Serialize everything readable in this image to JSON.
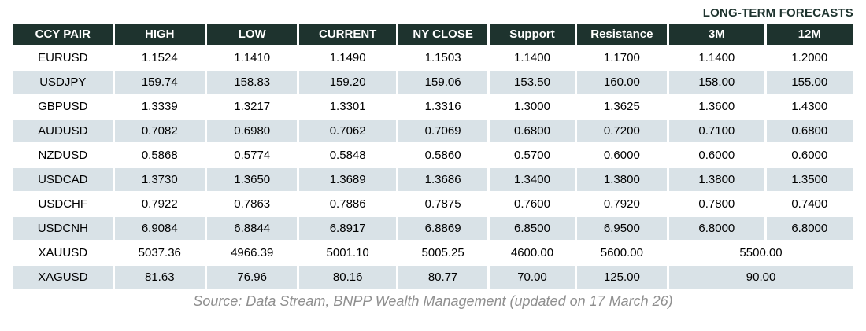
{
  "forecast_banner": "LONG-TERM FORECASTS",
  "source_note": "Source: Data Stream, BNPP Wealth Management (updated on 17 March 26)",
  "colors": {
    "header_bg": "#1e332e",
    "header_text": "#ffffff",
    "row_alt_bg": "#d9e2e7",
    "banner_text": "#1e332e",
    "source_text": "#8f8f8f"
  },
  "chart_data": {
    "type": "table",
    "title": "LONG-TERM FORECASTS",
    "columns": [
      "CCY PAIR",
      "HIGH",
      "LOW",
      "CURRENT",
      "NY CLOSE",
      "Support",
      "Resistance",
      "3M",
      "12M"
    ],
    "rows": [
      {
        "cells": [
          "EURUSD",
          "1.1524",
          "1.1410",
          "1.1490",
          "1.1503",
          "1.1400",
          "1.1700",
          "1.1400",
          "1.2000"
        ]
      },
      {
        "cells": [
          "USDJPY",
          "159.74",
          "158.83",
          "159.20",
          "159.06",
          "153.50",
          "160.00",
          "158.00",
          "155.00"
        ]
      },
      {
        "cells": [
          "GBPUSD",
          "1.3339",
          "1.3217",
          "1.3301",
          "1.3316",
          "1.3000",
          "1.3625",
          "1.3600",
          "1.4300"
        ]
      },
      {
        "cells": [
          "AUDUSD",
          "0.7082",
          "0.6980",
          "0.7062",
          "0.7069",
          "0.6800",
          "0.7200",
          "0.7100",
          "0.6800"
        ]
      },
      {
        "cells": [
          "NZDUSD",
          "0.5868",
          "0.5774",
          "0.5848",
          "0.5860",
          "0.5700",
          "0.6000",
          "0.6000",
          "0.6000"
        ]
      },
      {
        "cells": [
          "USDCAD",
          "1.3730",
          "1.3650",
          "1.3689",
          "1.3686",
          "1.3400",
          "1.3800",
          "1.3800",
          "1.3500"
        ]
      },
      {
        "cells": [
          "USDCHF",
          "0.7922",
          "0.7863",
          "0.7886",
          "0.7875",
          "0.7600",
          "0.7920",
          "0.7800",
          "0.7400"
        ]
      },
      {
        "cells": [
          "USDCNH",
          "6.9084",
          "6.8844",
          "6.8917",
          "6.8869",
          "6.8500",
          "6.9500",
          "6.8000",
          "6.8000"
        ]
      },
      {
        "cells": [
          "XAUUSD",
          "5037.36",
          "4966.39",
          "5001.10",
          "5005.25",
          "4600.00",
          "5600.00",
          "5500.00"
        ],
        "merged_forecast": true
      },
      {
        "cells": [
          "XAGUSD",
          "81.63",
          "76.96",
          "80.16",
          "80.77",
          "70.00",
          "125.00",
          "90.00"
        ],
        "merged_forecast": true
      }
    ]
  }
}
